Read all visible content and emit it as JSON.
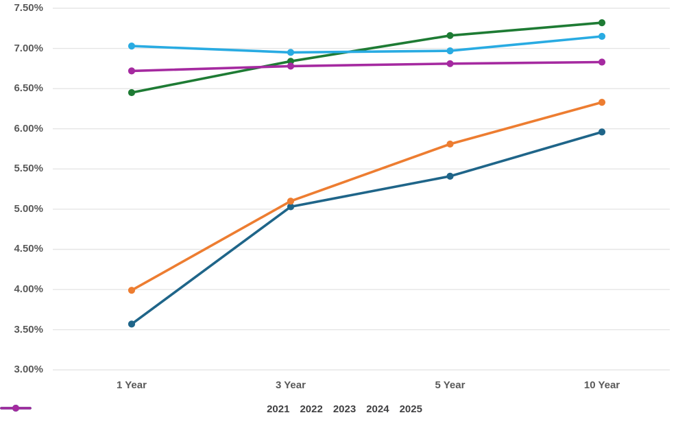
{
  "chart_data": {
    "type": "line",
    "title": "",
    "categories": [
      "1 Year",
      "3 Year",
      "5 Year",
      "10 Year"
    ],
    "series": [
      {
        "name": "2021",
        "color": "#1F6589",
        "values": [
          3.57,
          5.03,
          5.41,
          5.96
        ]
      },
      {
        "name": "2022",
        "color": "#ED7D31",
        "values": [
          3.99,
          5.1,
          5.81,
          6.33
        ]
      },
      {
        "name": "2023",
        "color": "#1E7B34",
        "values": [
          6.45,
          6.84,
          7.16,
          7.32
        ]
      },
      {
        "name": "2024",
        "color": "#29ABE2",
        "values": [
          7.03,
          6.95,
          6.97,
          7.15
        ]
      },
      {
        "name": "2025",
        "color": "#A52AA0",
        "values": [
          6.72,
          6.78,
          6.81,
          6.83
        ]
      }
    ],
    "y_axis": {
      "min": 3.0,
      "max": 7.5,
      "step": 0.5,
      "tick_labels": [
        "7.50%",
        "7.00%",
        "6.50%",
        "6.00%",
        "5.50%",
        "5.00%",
        "4.50%",
        "4.00%",
        "3.50%",
        "3.00%"
      ]
    },
    "x_axis": {
      "labels": [
        "1 Year",
        "3 Year",
        "5 Year",
        "10 Year"
      ]
    },
    "legend": {
      "position": "bottom",
      "entries": [
        "2021",
        "2022",
        "2023",
        "2024",
        "2025"
      ]
    },
    "grid": "horizontal",
    "marker": "circle"
  },
  "colors": {
    "background": "#FFFFFF",
    "gridline": "#E5E5E5",
    "tick_label": "#595959",
    "legend_label": "#404042"
  }
}
